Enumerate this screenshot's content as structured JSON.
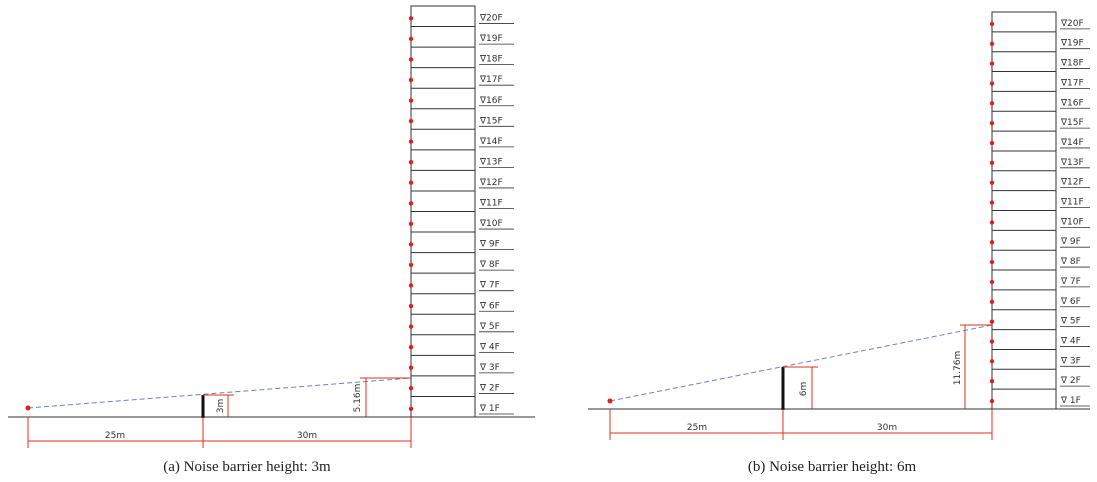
{
  "floors": [
    "∇20F",
    "∇19F",
    "∇18F",
    "∇17F",
    "∇16F",
    "∇15F",
    "∇14F",
    "∇13F",
    "∇12F",
    "∇11F",
    "∇10F",
    "∇ 9F",
    "∇ 8F",
    "∇ 7F",
    "∇ 6F",
    "∇ 5F",
    "∇ 4F",
    "∇ 3F",
    "∇ 2F",
    "∇ 1F"
  ],
  "panel_a": {
    "caption": "(a) Noise barrier height: 3m",
    "barrier_label": "3m",
    "receiver_label": "5.16m",
    "dist_left": "25m",
    "dist_right": "30m"
  },
  "panel_b": {
    "caption": "(b) Noise barrier height: 6m",
    "barrier_label": "6m",
    "receiver_label": "11.76m",
    "dist_left": "25m",
    "dist_right": "30m"
  },
  "colors": {
    "dimension": "#e0301e",
    "sight_line": "#6b7fd6",
    "point": "#e0201a"
  }
}
